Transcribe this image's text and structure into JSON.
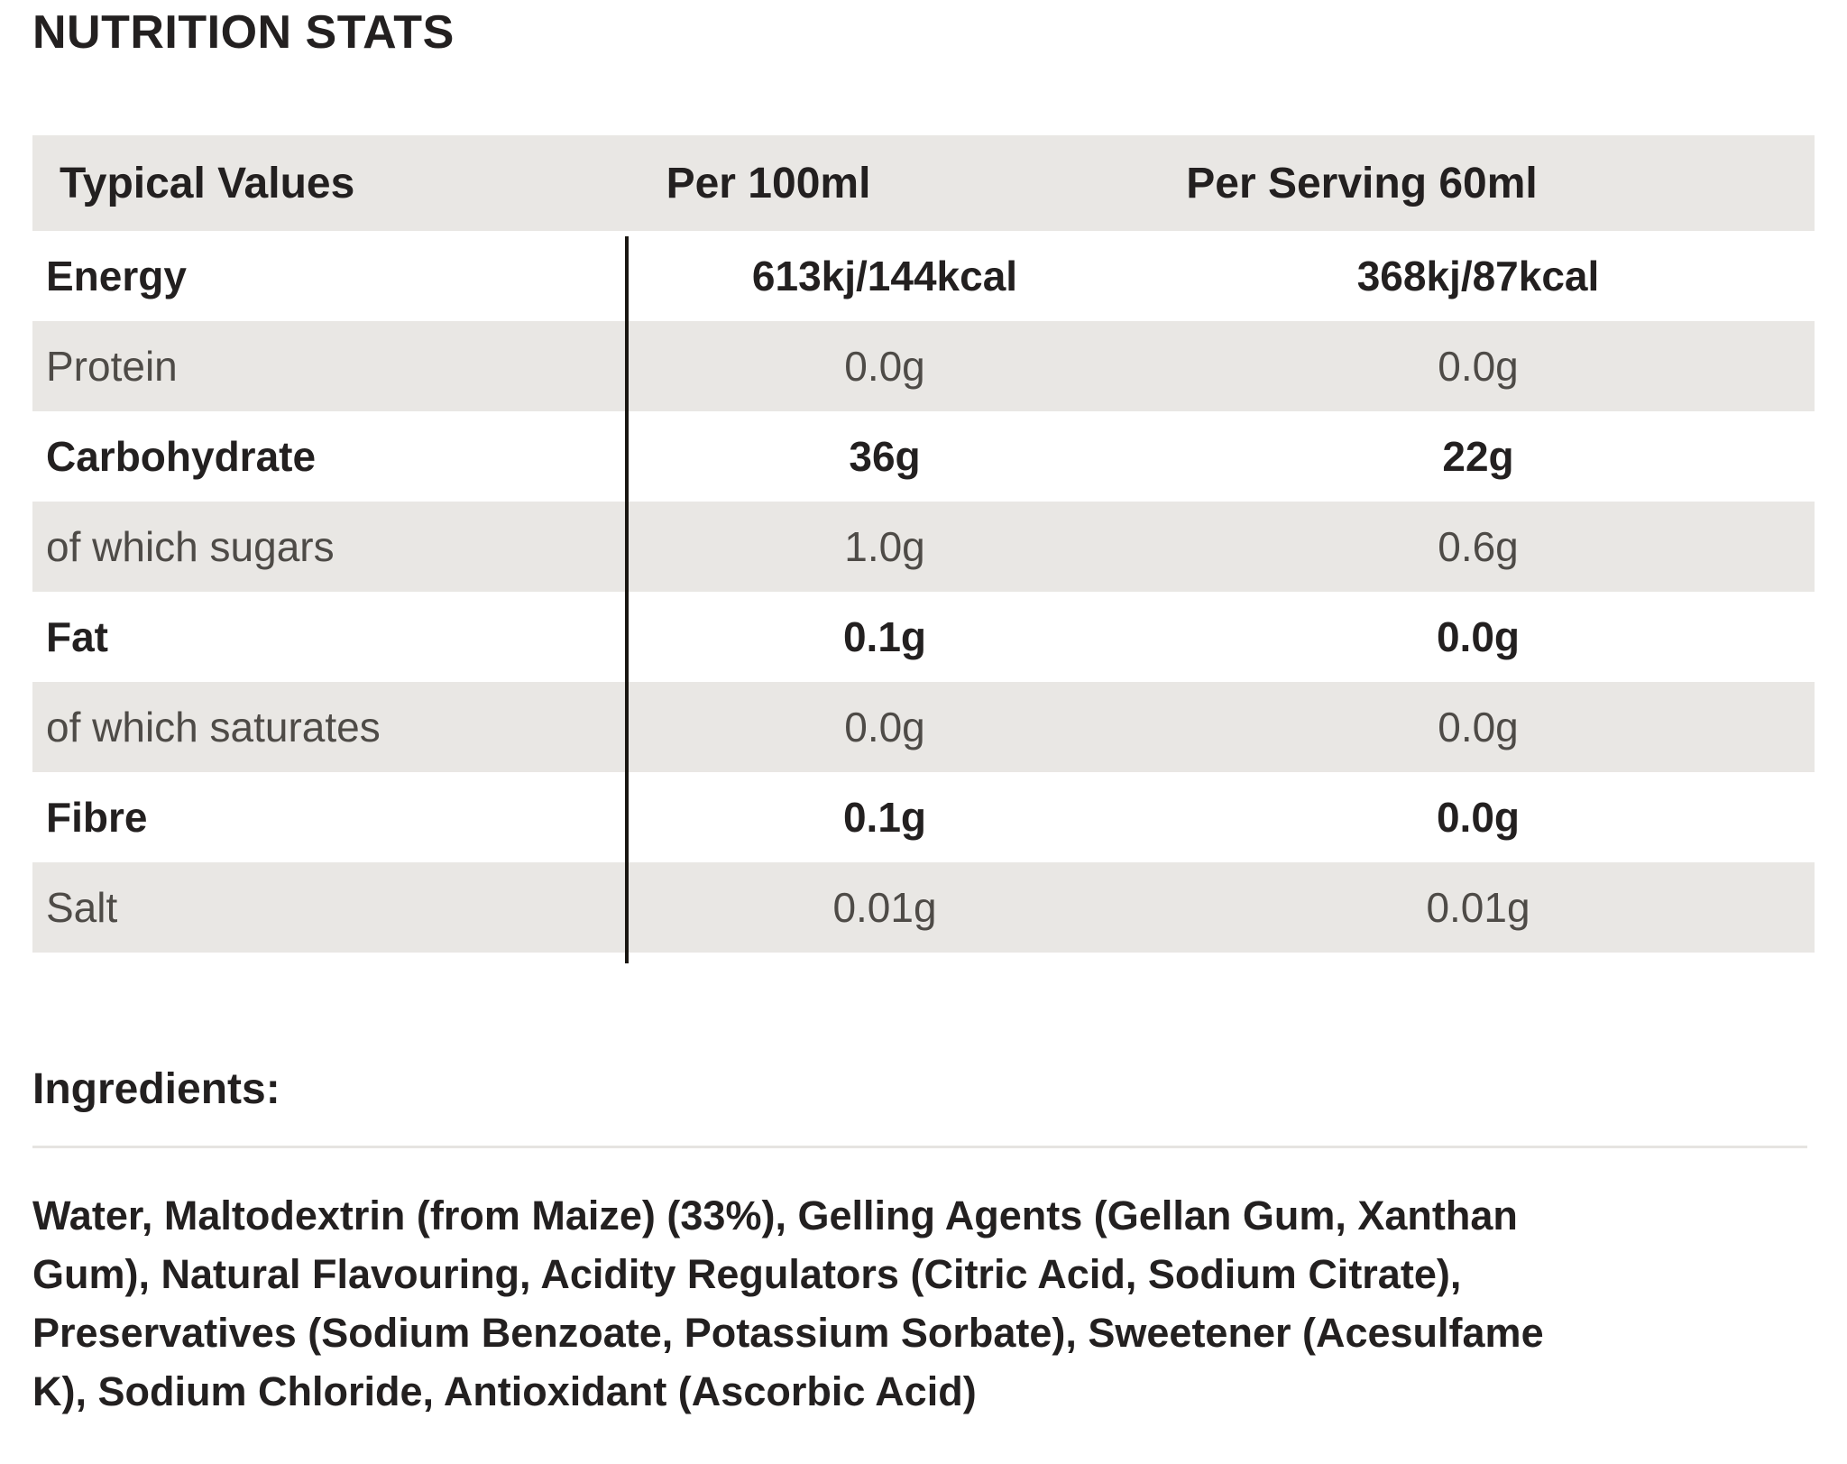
{
  "title": "NUTRITION STATS",
  "table": {
    "columns": [
      "Typical Values",
      "Per 100ml",
      "Per Serving 60ml"
    ],
    "rows": [
      {
        "label": "Energy",
        "per_100ml": "613kj/144kcal",
        "per_serving_60ml": "368kj/87kcal",
        "emphasis": true
      },
      {
        "label": "Protein",
        "per_100ml": "0.0g",
        "per_serving_60ml": "0.0g",
        "emphasis": false
      },
      {
        "label": "Carbohydrate",
        "per_100ml": "36g",
        "per_serving_60ml": "22g",
        "emphasis": true
      },
      {
        "label": "of which sugars",
        "per_100ml": "1.0g",
        "per_serving_60ml": "0.6g",
        "emphasis": false
      },
      {
        "label": "Fat",
        "per_100ml": "0.1g",
        "per_serving_60ml": "0.0g",
        "emphasis": true
      },
      {
        "label": "of which saturates",
        "per_100ml": "0.0g",
        "per_serving_60ml": "0.0g",
        "emphasis": false
      },
      {
        "label": "Fibre",
        "per_100ml": "0.1g",
        "per_serving_60ml": "0.0g",
        "emphasis": true
      },
      {
        "label": "Salt",
        "per_100ml": "0.01g",
        "per_serving_60ml": "0.01g",
        "emphasis": false
      }
    ]
  },
  "ingredients": {
    "heading": "Ingredients:",
    "lines": [
      "Water, Maltodextrin (from Maize) (33%), Gelling Agents (Gellan Gum, Xanthan",
      "Gum), Natural Flavouring, Acidity Regulators (Citric Acid, Sodium Citrate),",
      "Preservatives (Sodium Benzoate, Potassium Sorbate), Sweetener (Acesulfame",
      "K), Sodium Chloride, Antioxidant (Ascorbic Acid)"
    ],
    "full_text": "Water, Maltodextrin (from Maize) (33%), Gelling Agents (Gellan Gum, Xanthan Gum), Natural Flavouring, Acidity Regulators (Citric Acid, Sodium Citrate), Preservatives (Sodium Benzoate, Potassium Sorbate), Sweetener (Acesulfame K), Sodium Chloride, Antioxidant (Ascorbic Acid)"
  },
  "colors": {
    "row_alt_background": "#e9e7e4",
    "text_primary": "#232020",
    "text_muted": "#4e4b47",
    "column_divider": "#1a1712",
    "section_divider": "#e6e4e1"
  }
}
